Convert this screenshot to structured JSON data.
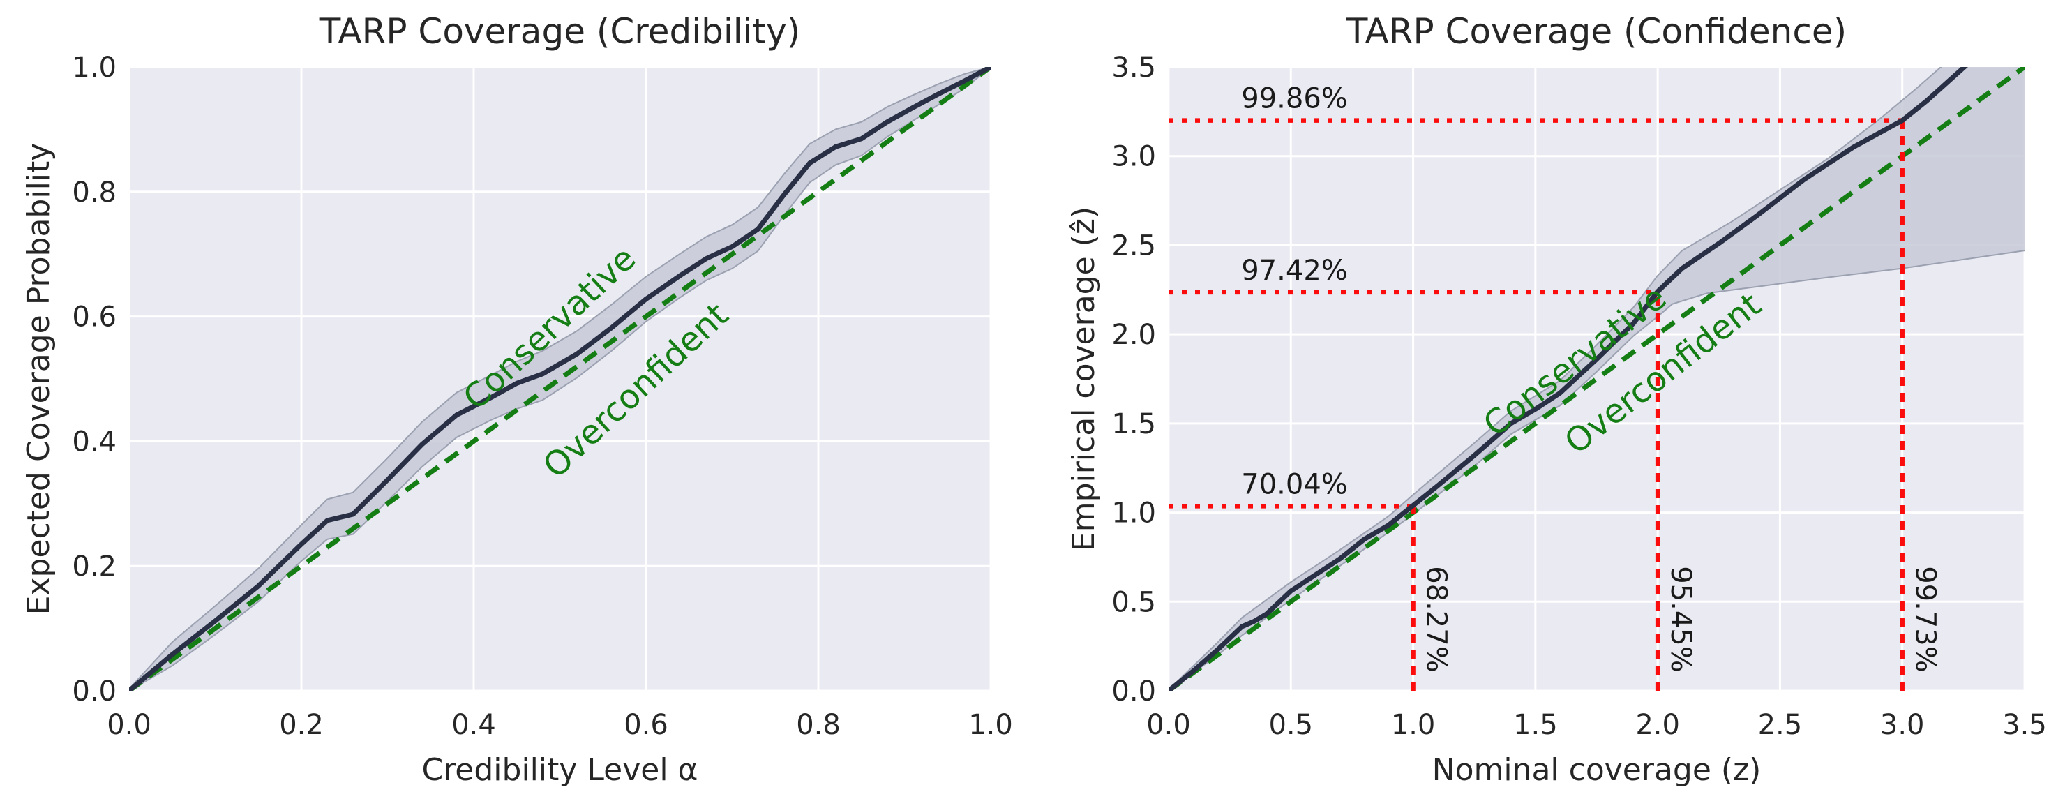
{
  "page": {
    "background": "#ffffff"
  },
  "style": {
    "axes_background": "#eaeaf2",
    "grid_color": "#ffffff",
    "coverage_line_color": "#293046",
    "band_fill": "#c7cad7",
    "band_edge": "#9ba1b1",
    "diagonal_color": "#147e14",
    "annotation_color": "#fb0d0d",
    "title_color": "#262626",
    "tick_color": "#262626",
    "annotation_text_color": "#1a1a1a"
  },
  "chart_data": [
    {
      "type": "line",
      "name": "tarp-coverage-credibility",
      "title": "TARP Coverage (Credibility)",
      "xlabel": "Credibility Level α",
      "ylabel": "Expected Coverage Probability",
      "xlim": [
        0.0,
        1.0
      ],
      "ylim": [
        0.0,
        1.0
      ],
      "xticks": [
        0.0,
        0.2,
        0.4,
        0.6,
        0.8,
        1.0
      ],
      "yticks": [
        0.0,
        0.2,
        0.4,
        0.6,
        0.8,
        1.0
      ],
      "grid": true,
      "legend": "none",
      "series": [
        {
          "name": "expected-coverage",
          "style": "solid",
          "points": [
            [
              0,
              0
            ],
            [
              0.05,
              0.058
            ],
            [
              0.1,
              0.112
            ],
            [
              0.15,
              0.168
            ],
            [
              0.2,
              0.235
            ],
            [
              0.23,
              0.273
            ],
            [
              0.26,
              0.283
            ],
            [
              0.3,
              0.338
            ],
            [
              0.34,
              0.395
            ],
            [
              0.38,
              0.442
            ],
            [
              0.42,
              0.47
            ],
            [
              0.45,
              0.493
            ],
            [
              0.48,
              0.508
            ],
            [
              0.52,
              0.54
            ],
            [
              0.56,
              0.582
            ],
            [
              0.6,
              0.628
            ],
            [
              0.64,
              0.666
            ],
            [
              0.67,
              0.693
            ],
            [
              0.7,
              0.712
            ],
            [
              0.73,
              0.74
            ],
            [
              0.76,
              0.795
            ],
            [
              0.79,
              0.846
            ],
            [
              0.82,
              0.872
            ],
            [
              0.85,
              0.885
            ],
            [
              0.88,
              0.912
            ],
            [
              0.91,
              0.935
            ],
            [
              0.94,
              0.957
            ],
            [
              0.97,
              0.978
            ],
            [
              1,
              1
            ]
          ]
        },
        {
          "name": "ideal-diagonal",
          "style": "dashed",
          "points": [
            [
              0,
              0
            ],
            [
              1,
              1
            ]
          ]
        }
      ],
      "band": {
        "name": "uncertainty-band",
        "upper": [
          [
            0,
            0.003
          ],
          [
            0.05,
            0.078
          ],
          [
            0.1,
            0.136
          ],
          [
            0.15,
            0.196
          ],
          [
            0.2,
            0.266
          ],
          [
            0.23,
            0.307
          ],
          [
            0.26,
            0.318
          ],
          [
            0.3,
            0.373
          ],
          [
            0.34,
            0.431
          ],
          [
            0.38,
            0.478
          ],
          [
            0.42,
            0.506
          ],
          [
            0.45,
            0.528
          ],
          [
            0.48,
            0.545
          ],
          [
            0.52,
            0.577
          ],
          [
            0.56,
            0.619
          ],
          [
            0.6,
            0.664
          ],
          [
            0.64,
            0.701
          ],
          [
            0.67,
            0.728
          ],
          [
            0.7,
            0.747
          ],
          [
            0.73,
            0.775
          ],
          [
            0.76,
            0.828
          ],
          [
            0.79,
            0.877
          ],
          [
            0.82,
            0.9
          ],
          [
            0.85,
            0.912
          ],
          [
            0.88,
            0.936
          ],
          [
            0.91,
            0.955
          ],
          [
            0.94,
            0.973
          ],
          [
            0.97,
            0.989
          ],
          [
            1,
            1
          ]
        ],
        "lower": [
          [
            0,
            0
          ],
          [
            0.05,
            0.04
          ],
          [
            0.1,
            0.09
          ],
          [
            0.15,
            0.143
          ],
          [
            0.2,
            0.208
          ],
          [
            0.23,
            0.243
          ],
          [
            0.26,
            0.251
          ],
          [
            0.3,
            0.304
          ],
          [
            0.34,
            0.359
          ],
          [
            0.38,
            0.406
          ],
          [
            0.42,
            0.434
          ],
          [
            0.45,
            0.452
          ],
          [
            0.48,
            0.466
          ],
          [
            0.52,
            0.502
          ],
          [
            0.56,
            0.545
          ],
          [
            0.6,
            0.592
          ],
          [
            0.64,
            0.631
          ],
          [
            0.67,
            0.658
          ],
          [
            0.7,
            0.677
          ],
          [
            0.73,
            0.705
          ],
          [
            0.76,
            0.762
          ],
          [
            0.79,
            0.815
          ],
          [
            0.82,
            0.843
          ],
          [
            0.85,
            0.858
          ],
          [
            0.88,
            0.888
          ],
          [
            0.91,
            0.914
          ],
          [
            0.94,
            0.94
          ],
          [
            0.97,
            0.966
          ],
          [
            1,
            1
          ]
        ]
      },
      "region_labels": [
        {
          "text": "Conservative",
          "x": 0.497,
          "y": 0.568,
          "rotation": -43
        },
        {
          "text": "Overconfident",
          "x": 0.597,
          "y": 0.468,
          "rotation": -43
        }
      ],
      "annotations": []
    },
    {
      "type": "line",
      "name": "tarp-coverage-confidence",
      "title": "TARP Coverage (Confidence)",
      "xlabel": "Nominal coverage (z)",
      "ylabel": "Empirical coverage (ẑ)",
      "xlim": [
        0.0,
        3.5
      ],
      "ylim": [
        0.0,
        3.5
      ],
      "xticks": [
        0.0,
        0.5,
        1.0,
        1.5,
        2.0,
        2.5,
        3.0,
        3.5
      ],
      "yticks": [
        0.0,
        0.5,
        1.0,
        1.5,
        2.0,
        2.5,
        3.0,
        3.5
      ],
      "grid": true,
      "legend": "none",
      "series": [
        {
          "name": "empirical-coverage",
          "style": "solid",
          "points": [
            [
              0,
              0
            ],
            [
              0.1,
              0.11
            ],
            [
              0.2,
              0.23
            ],
            [
              0.3,
              0.36
            ],
            [
              0.35,
              0.39
            ],
            [
              0.4,
              0.43
            ],
            [
              0.5,
              0.56
            ],
            [
              0.6,
              0.65
            ],
            [
              0.7,
              0.74
            ],
            [
              0.8,
              0.85
            ],
            [
              0.9,
              0.93
            ],
            [
              1.0,
              1.04
            ],
            [
              1.1,
              1.15
            ],
            [
              1.25,
              1.32
            ],
            [
              1.4,
              1.5
            ],
            [
              1.5,
              1.58
            ],
            [
              1.6,
              1.67
            ],
            [
              1.75,
              1.86
            ],
            [
              1.9,
              2.06
            ],
            [
              2.0,
              2.24
            ],
            [
              2.1,
              2.37
            ],
            [
              2.25,
              2.51
            ],
            [
              2.4,
              2.66
            ],
            [
              2.6,
              2.87
            ],
            [
              2.8,
              3.05
            ],
            [
              3.0,
              3.2
            ],
            [
              3.1,
              3.31
            ],
            [
              3.27,
              3.52
            ]
          ]
        },
        {
          "name": "ideal-diagonal",
          "style": "dashed",
          "points": [
            [
              0,
              0
            ],
            [
              3.5,
              3.5
            ]
          ]
        }
      ],
      "band": {
        "name": "uncertainty-band",
        "upper": [
          [
            0,
            0.005
          ],
          [
            0.2,
            0.27
          ],
          [
            0.3,
            0.41
          ],
          [
            0.5,
            0.61
          ],
          [
            0.7,
            0.79
          ],
          [
            0.9,
            0.98
          ],
          [
            1.0,
            1.1
          ],
          [
            1.25,
            1.39
          ],
          [
            1.4,
            1.57
          ],
          [
            1.6,
            1.74
          ],
          [
            1.75,
            1.94
          ],
          [
            1.9,
            2.15
          ],
          [
            2.0,
            2.33
          ],
          [
            2.1,
            2.47
          ],
          [
            2.3,
            2.63
          ],
          [
            2.5,
            2.81
          ],
          [
            2.7,
            2.99
          ],
          [
            2.9,
            3.2
          ],
          [
            3.05,
            3.37
          ],
          [
            3.2,
            3.55
          ],
          [
            3.5,
            3.8
          ]
        ],
        "lower": [
          [
            0,
            0
          ],
          [
            0.2,
            0.2
          ],
          [
            0.3,
            0.31
          ],
          [
            0.5,
            0.51
          ],
          [
            0.7,
            0.7
          ],
          [
            0.9,
            0.89
          ],
          [
            1.0,
            0.99
          ],
          [
            1.25,
            1.26
          ],
          [
            1.4,
            1.44
          ],
          [
            1.6,
            1.6
          ],
          [
            1.75,
            1.79
          ],
          [
            1.9,
            1.99
          ],
          [
            2.0,
            2.1
          ],
          [
            2.06,
            2.17
          ],
          [
            2.2,
            2.23
          ],
          [
            2.42,
            2.27
          ],
          [
            2.7,
            2.32
          ],
          [
            3.0,
            2.37
          ],
          [
            3.25,
            2.42
          ],
          [
            3.5,
            2.47
          ]
        ]
      },
      "region_labels": [
        {
          "text": "Conservative",
          "x": 1.69,
          "y": 1.8,
          "rotation": -38
        },
        {
          "text": "Overconfident",
          "x": 2.05,
          "y": 1.73,
          "rotation": -38
        }
      ],
      "annotations": [
        {
          "x": 1.0,
          "y": 1.036,
          "h_label": "70.04%",
          "v_label": "68.27%"
        },
        {
          "x": 2.0,
          "y": 2.236,
          "h_label": "97.42%",
          "v_label": "95.45%"
        },
        {
          "x": 3.0,
          "y": 3.2,
          "h_label": "99.86%",
          "v_label": "99.73%"
        }
      ]
    }
  ]
}
